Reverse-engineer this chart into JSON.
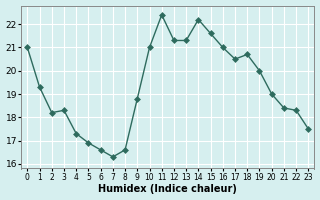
{
  "x": [
    0,
    1,
    2,
    3,
    4,
    5,
    6,
    7,
    8,
    9,
    10,
    11,
    12,
    13,
    14,
    15,
    16,
    17,
    18,
    19,
    20,
    21,
    22,
    23
  ],
  "y": [
    21.0,
    19.3,
    18.2,
    18.3,
    17.3,
    16.9,
    16.6,
    16.3,
    16.6,
    18.8,
    21.0,
    22.4,
    21.3,
    21.3,
    22.2,
    21.6,
    21.0,
    20.5,
    20.7,
    20.0,
    19.0,
    18.4,
    18.3,
    17.5
  ],
  "xlabel": "Humidex (Indice chaleur)",
  "ylim": [
    15.8,
    22.8
  ],
  "xlim": [
    -0.5,
    23.5
  ],
  "line_color": "#2e6b5e",
  "marker": "D",
  "marker_size": 3,
  "bg_color": "#d6efef",
  "grid_color": "#ffffff",
  "tick_labels": [
    "0",
    "1",
    "2",
    "3",
    "4",
    "5",
    "6",
    "7",
    "8",
    "9",
    "10",
    "11",
    "12",
    "13",
    "14",
    "15",
    "16",
    "17",
    "18",
    "19",
    "20",
    "21",
    "22",
    "23"
  ],
  "yticks": [
    16,
    17,
    18,
    19,
    20,
    21,
    22
  ],
  "figsize": [
    3.2,
    2.0
  ],
  "dpi": 100
}
